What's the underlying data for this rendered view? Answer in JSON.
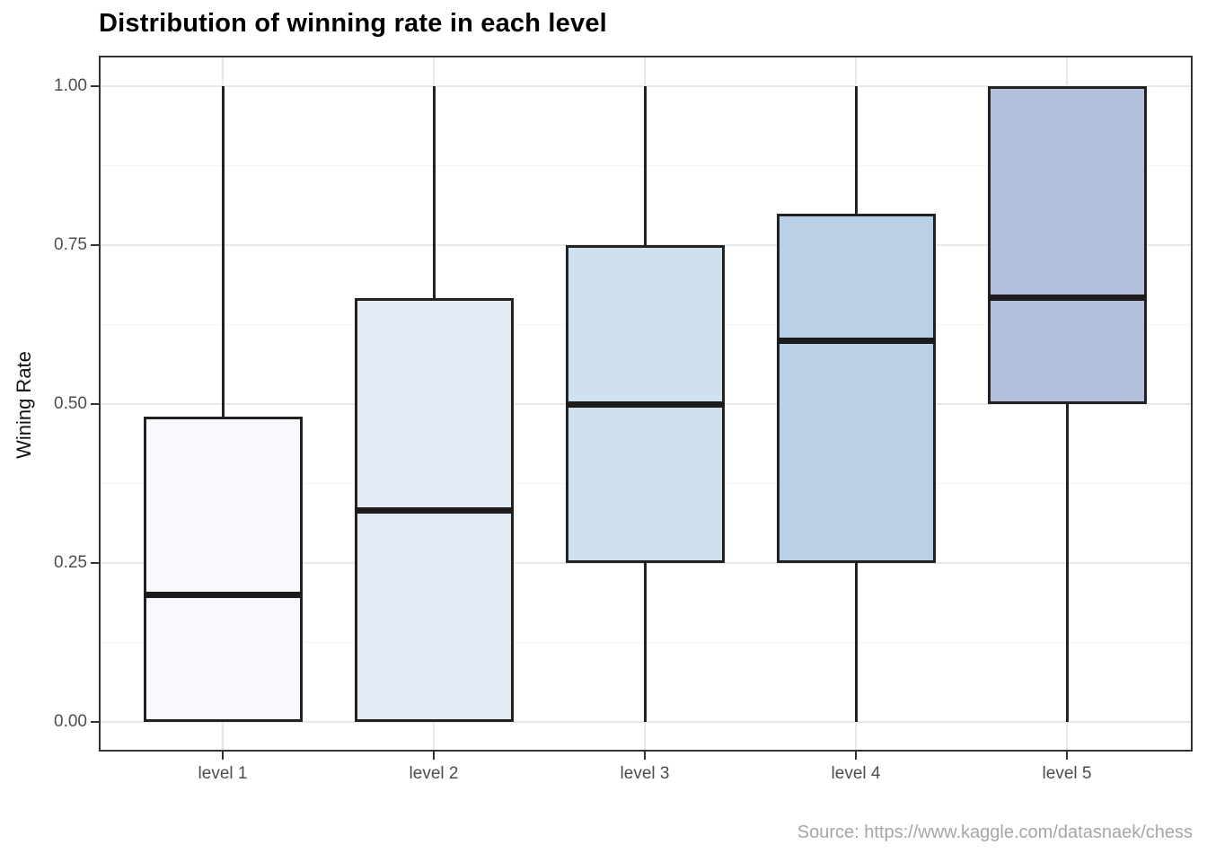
{
  "title": "Distribution of winning rate in each level",
  "source_caption": "Source: https://www.kaggle.com/datasnaek/chess",
  "y_axis": {
    "label": "Wining Rate",
    "ticks": [
      {
        "value": 1.0,
        "label": "1.00"
      },
      {
        "value": 0.75,
        "label": "0.75"
      },
      {
        "value": 0.5,
        "label": "0.50"
      },
      {
        "value": 0.25,
        "label": "0.25"
      },
      {
        "value": 0.0,
        "label": "0.00"
      }
    ]
  },
  "x_axis": {
    "ticks": [
      "level 1",
      "level 2",
      "level 3",
      "level 4",
      "level 5"
    ]
  },
  "colors": {
    "title": "#000000",
    "panel_border": "#333333",
    "grid_major": "#e8e8e8",
    "grid_minor": "#f4f4f4",
    "box_border": "#222222",
    "median_line": "#1c1c1c",
    "axis_tick": "#333333",
    "tick_label": "#4d4d4d",
    "source_text": "#a6a6a6"
  },
  "chart_data": {
    "type": "boxplot",
    "title": "Distribution of winning rate in each level",
    "xlabel": "",
    "ylabel": "Wining Rate",
    "ylim": [
      0,
      1
    ],
    "grid": true,
    "categories": [
      "level 1",
      "level 2",
      "level 3",
      "level 4",
      "level 5"
    ],
    "series": [
      {
        "name": "level 1",
        "whisker_low": 0.0,
        "q1": 0.0,
        "median": 0.2,
        "q3": 0.48,
        "whisker_high": 1.0,
        "fill": "#f7f9fd"
      },
      {
        "name": "level 2",
        "whisker_low": 0.0,
        "q1": 0.0,
        "median": 0.333,
        "q3": 0.667,
        "whisker_high": 1.0,
        "fill": "#e3ebf5"
      },
      {
        "name": "level 3",
        "whisker_low": 0.0,
        "q1": 0.25,
        "median": 0.5,
        "q3": 0.75,
        "whisker_high": 1.0,
        "fill": "#cfe0ef"
      },
      {
        "name": "level 4",
        "whisker_low": 0.0,
        "q1": 0.25,
        "median": 0.6,
        "q3": 0.8,
        "whisker_high": 1.0,
        "fill": "#bad0e7"
      },
      {
        "name": "level 5",
        "whisker_low": 0.0,
        "q1": 0.5,
        "median": 0.667,
        "q3": 1.0,
        "whisker_high": 1.0,
        "fill": "#b3c0db"
      }
    ]
  }
}
